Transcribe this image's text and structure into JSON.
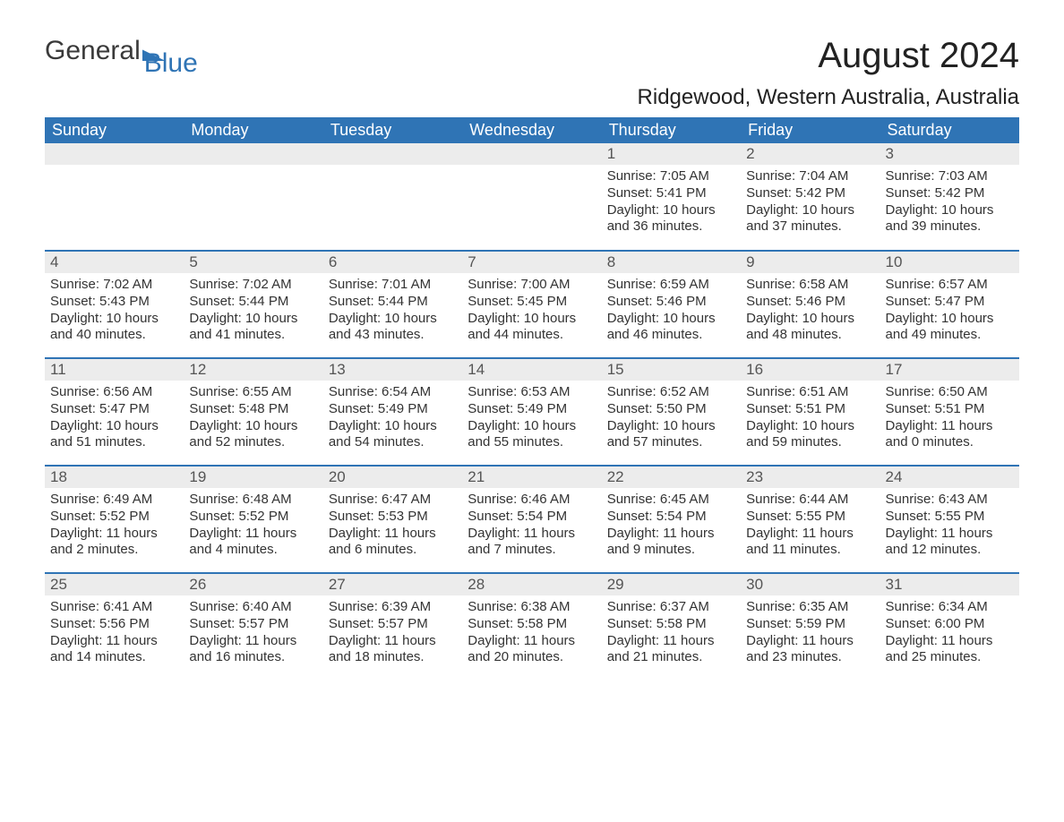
{
  "logo": {
    "text1": "General",
    "text2": "Blue"
  },
  "title": "August 2024",
  "location": "Ridgewood, Western Australia, Australia",
  "colors": {
    "header_bg": "#2f74b5",
    "header_text": "#ffffff",
    "daynum_bg": "#ececec",
    "border": "#2f74b5",
    "body_text": "#333333",
    "page_bg": "#ffffff"
  },
  "columns": [
    "Sunday",
    "Monday",
    "Tuesday",
    "Wednesday",
    "Thursday",
    "Friday",
    "Saturday"
  ],
  "weeks": [
    [
      {
        "day": "",
        "sunrise": "",
        "sunset": "",
        "daylight": ""
      },
      {
        "day": "",
        "sunrise": "",
        "sunset": "",
        "daylight": ""
      },
      {
        "day": "",
        "sunrise": "",
        "sunset": "",
        "daylight": ""
      },
      {
        "day": "",
        "sunrise": "",
        "sunset": "",
        "daylight": ""
      },
      {
        "day": "1",
        "sunrise": "Sunrise: 7:05 AM",
        "sunset": "Sunset: 5:41 PM",
        "daylight": "Daylight: 10 hours and 36 minutes."
      },
      {
        "day": "2",
        "sunrise": "Sunrise: 7:04 AM",
        "sunset": "Sunset: 5:42 PM",
        "daylight": "Daylight: 10 hours and 37 minutes."
      },
      {
        "day": "3",
        "sunrise": "Sunrise: 7:03 AM",
        "sunset": "Sunset: 5:42 PM",
        "daylight": "Daylight: 10 hours and 39 minutes."
      }
    ],
    [
      {
        "day": "4",
        "sunrise": "Sunrise: 7:02 AM",
        "sunset": "Sunset: 5:43 PM",
        "daylight": "Daylight: 10 hours and 40 minutes."
      },
      {
        "day": "5",
        "sunrise": "Sunrise: 7:02 AM",
        "sunset": "Sunset: 5:44 PM",
        "daylight": "Daylight: 10 hours and 41 minutes."
      },
      {
        "day": "6",
        "sunrise": "Sunrise: 7:01 AM",
        "sunset": "Sunset: 5:44 PM",
        "daylight": "Daylight: 10 hours and 43 minutes."
      },
      {
        "day": "7",
        "sunrise": "Sunrise: 7:00 AM",
        "sunset": "Sunset: 5:45 PM",
        "daylight": "Daylight: 10 hours and 44 minutes."
      },
      {
        "day": "8",
        "sunrise": "Sunrise: 6:59 AM",
        "sunset": "Sunset: 5:46 PM",
        "daylight": "Daylight: 10 hours and 46 minutes."
      },
      {
        "day": "9",
        "sunrise": "Sunrise: 6:58 AM",
        "sunset": "Sunset: 5:46 PM",
        "daylight": "Daylight: 10 hours and 48 minutes."
      },
      {
        "day": "10",
        "sunrise": "Sunrise: 6:57 AM",
        "sunset": "Sunset: 5:47 PM",
        "daylight": "Daylight: 10 hours and 49 minutes."
      }
    ],
    [
      {
        "day": "11",
        "sunrise": "Sunrise: 6:56 AM",
        "sunset": "Sunset: 5:47 PM",
        "daylight": "Daylight: 10 hours and 51 minutes."
      },
      {
        "day": "12",
        "sunrise": "Sunrise: 6:55 AM",
        "sunset": "Sunset: 5:48 PM",
        "daylight": "Daylight: 10 hours and 52 minutes."
      },
      {
        "day": "13",
        "sunrise": "Sunrise: 6:54 AM",
        "sunset": "Sunset: 5:49 PM",
        "daylight": "Daylight: 10 hours and 54 minutes."
      },
      {
        "day": "14",
        "sunrise": "Sunrise: 6:53 AM",
        "sunset": "Sunset: 5:49 PM",
        "daylight": "Daylight: 10 hours and 55 minutes."
      },
      {
        "day": "15",
        "sunrise": "Sunrise: 6:52 AM",
        "sunset": "Sunset: 5:50 PM",
        "daylight": "Daylight: 10 hours and 57 minutes."
      },
      {
        "day": "16",
        "sunrise": "Sunrise: 6:51 AM",
        "sunset": "Sunset: 5:51 PM",
        "daylight": "Daylight: 10 hours and 59 minutes."
      },
      {
        "day": "17",
        "sunrise": "Sunrise: 6:50 AM",
        "sunset": "Sunset: 5:51 PM",
        "daylight": "Daylight: 11 hours and 0 minutes."
      }
    ],
    [
      {
        "day": "18",
        "sunrise": "Sunrise: 6:49 AM",
        "sunset": "Sunset: 5:52 PM",
        "daylight": "Daylight: 11 hours and 2 minutes."
      },
      {
        "day": "19",
        "sunrise": "Sunrise: 6:48 AM",
        "sunset": "Sunset: 5:52 PM",
        "daylight": "Daylight: 11 hours and 4 minutes."
      },
      {
        "day": "20",
        "sunrise": "Sunrise: 6:47 AM",
        "sunset": "Sunset: 5:53 PM",
        "daylight": "Daylight: 11 hours and 6 minutes."
      },
      {
        "day": "21",
        "sunrise": "Sunrise: 6:46 AM",
        "sunset": "Sunset: 5:54 PM",
        "daylight": "Daylight: 11 hours and 7 minutes."
      },
      {
        "day": "22",
        "sunrise": "Sunrise: 6:45 AM",
        "sunset": "Sunset: 5:54 PM",
        "daylight": "Daylight: 11 hours and 9 minutes."
      },
      {
        "day": "23",
        "sunrise": "Sunrise: 6:44 AM",
        "sunset": "Sunset: 5:55 PM",
        "daylight": "Daylight: 11 hours and 11 minutes."
      },
      {
        "day": "24",
        "sunrise": "Sunrise: 6:43 AM",
        "sunset": "Sunset: 5:55 PM",
        "daylight": "Daylight: 11 hours and 12 minutes."
      }
    ],
    [
      {
        "day": "25",
        "sunrise": "Sunrise: 6:41 AM",
        "sunset": "Sunset: 5:56 PM",
        "daylight": "Daylight: 11 hours and 14 minutes."
      },
      {
        "day": "26",
        "sunrise": "Sunrise: 6:40 AM",
        "sunset": "Sunset: 5:57 PM",
        "daylight": "Daylight: 11 hours and 16 minutes."
      },
      {
        "day": "27",
        "sunrise": "Sunrise: 6:39 AM",
        "sunset": "Sunset: 5:57 PM",
        "daylight": "Daylight: 11 hours and 18 minutes."
      },
      {
        "day": "28",
        "sunrise": "Sunrise: 6:38 AM",
        "sunset": "Sunset: 5:58 PM",
        "daylight": "Daylight: 11 hours and 20 minutes."
      },
      {
        "day": "29",
        "sunrise": "Sunrise: 6:37 AM",
        "sunset": "Sunset: 5:58 PM",
        "daylight": "Daylight: 11 hours and 21 minutes."
      },
      {
        "day": "30",
        "sunrise": "Sunrise: 6:35 AM",
        "sunset": "Sunset: 5:59 PM",
        "daylight": "Daylight: 11 hours and 23 minutes."
      },
      {
        "day": "31",
        "sunrise": "Sunrise: 6:34 AM",
        "sunset": "Sunset: 6:00 PM",
        "daylight": "Daylight: 11 hours and 25 minutes."
      }
    ]
  ]
}
